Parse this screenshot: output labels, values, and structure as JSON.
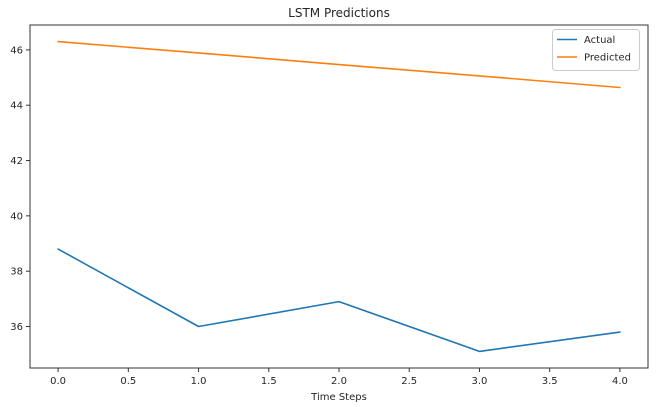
{
  "chart_data": {
    "type": "line",
    "title": "LSTM Predictions",
    "xlabel": "Time Steps",
    "ylabel": "",
    "x": [
      0,
      1,
      2,
      3,
      4
    ],
    "series": [
      {
        "name": "Actual",
        "color": "#1f77b4",
        "values": [
          38.8,
          36.0,
          36.9,
          35.1,
          35.8
        ]
      },
      {
        "name": "Predicted",
        "color": "#ff7f0e",
        "values": [
          46.3,
          45.89,
          45.47,
          45.06,
          44.64
        ]
      }
    ],
    "xlim": [
      -0.2,
      4.2
    ],
    "ylim": [
      34.5,
      46.9
    ],
    "x_ticks": [
      "0.0",
      "0.5",
      "1.0",
      "1.5",
      "2.0",
      "2.5",
      "3.0",
      "3.5",
      "4.0"
    ],
    "y_ticks": [
      36,
      38,
      40,
      42,
      44,
      46
    ],
    "grid": false,
    "legend_position": "upper right",
    "spine_color": "#333333",
    "background": "#ffffff"
  }
}
